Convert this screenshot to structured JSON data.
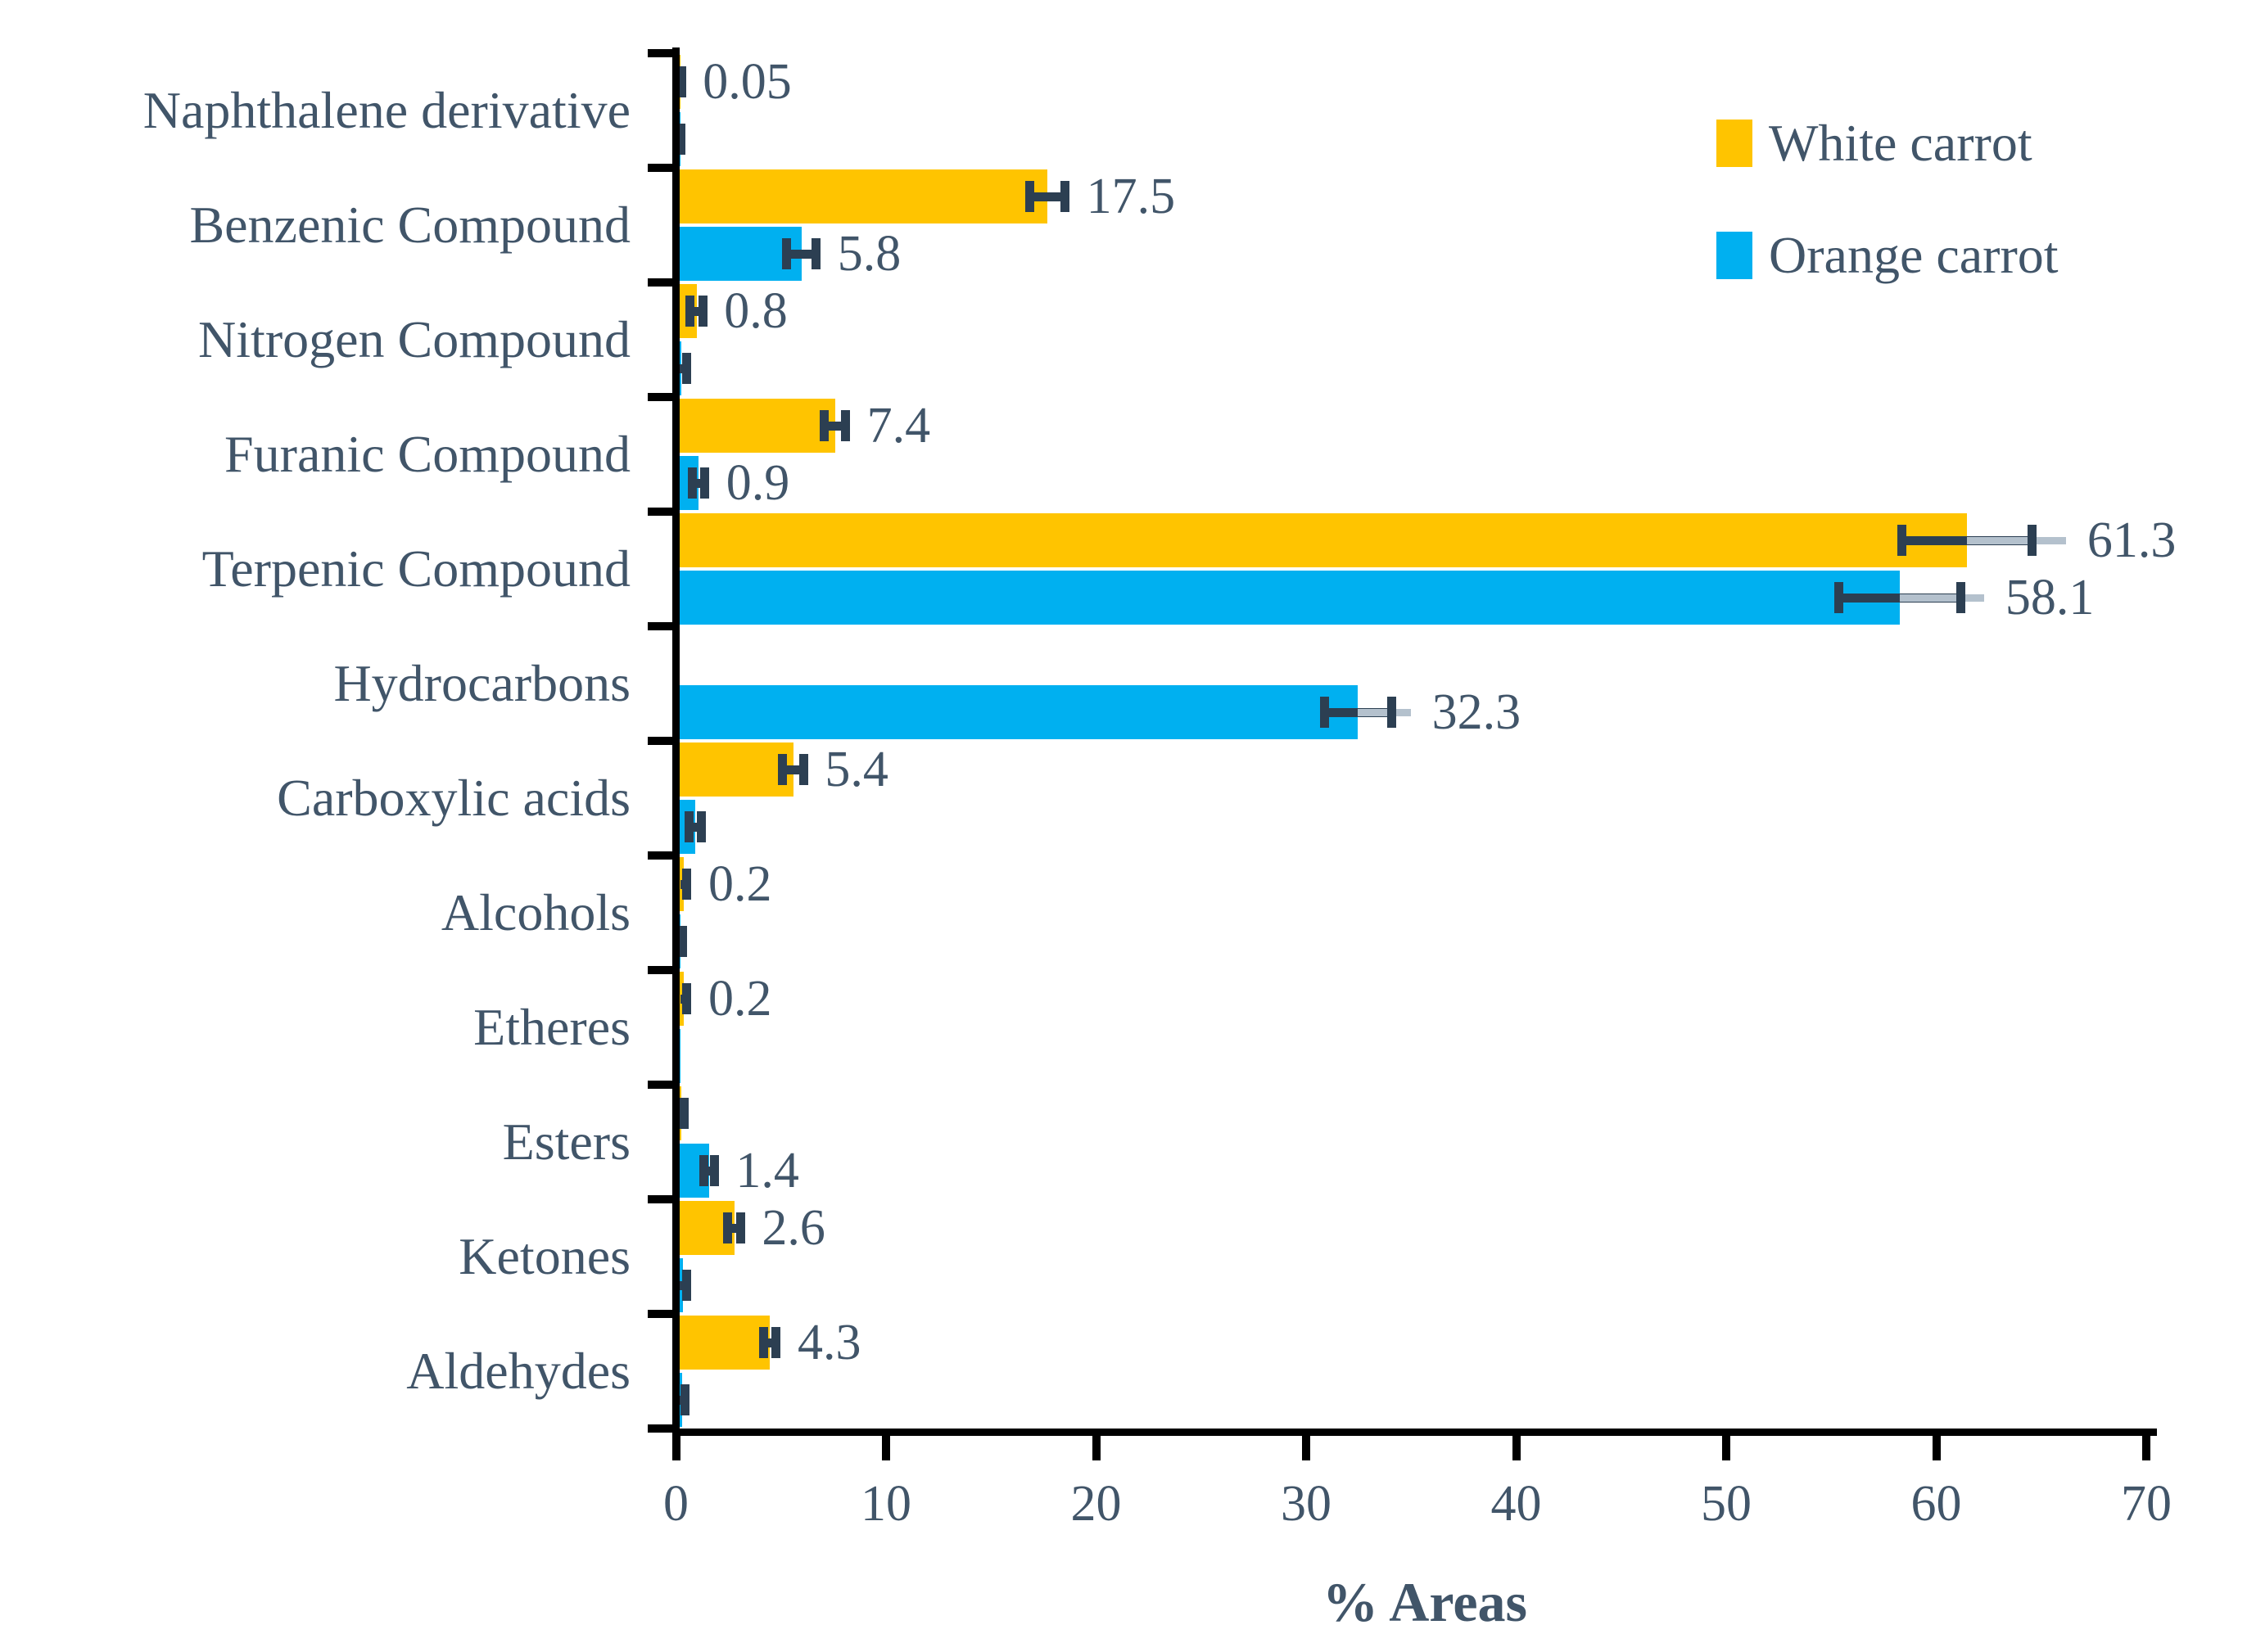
{
  "chart_data": {
    "type": "bar",
    "orientation": "horizontal",
    "xlabel": "% Areas",
    "xlim": [
      0,
      70
    ],
    "xticks": [
      0,
      10,
      20,
      30,
      40,
      50,
      60,
      70
    ],
    "grid": false,
    "legend_position": "top-right",
    "colors": {
      "white_carrot": "#FFC400",
      "orange_carrot": "#00B0F0",
      "error_dark": "#2C3F52",
      "error_gray": "#B4C1CD",
      "text": "#415569",
      "axis": "#000000"
    },
    "series": [
      {
        "name": "White carrot",
        "color": "#FFC400"
      },
      {
        "name": "Orange carrot",
        "color": "#00B0F0"
      }
    ],
    "categories": [
      {
        "name": "Naphthalene derivative",
        "white": {
          "value": 0.05,
          "err": 0.04,
          "err2": null,
          "label": "0.05"
        },
        "orange": {
          "value": 0.02,
          "err": 0.03,
          "err2": null,
          "label": null
        }
      },
      {
        "name": "Benzenic Compound",
        "white": {
          "value": 17.5,
          "err": 0.85,
          "err2": null,
          "label": "17.5"
        },
        "orange": {
          "value": 5.8,
          "err": 0.7,
          "err2": null,
          "label": "5.8"
        }
      },
      {
        "name": "Nitrogen Compound",
        "white": {
          "value": 0.8,
          "err": 0.3,
          "err2": null,
          "label": "0.8"
        },
        "orange": {
          "value": 0.08,
          "err": 0.25,
          "err2": null,
          "label": null
        }
      },
      {
        "name": "Furanic Compound",
        "white": {
          "value": 7.4,
          "err": 0.5,
          "err2": null,
          "label": "7.4"
        },
        "orange": {
          "value": 0.9,
          "err": 0.3,
          "err2": null,
          "label": "0.9"
        }
      },
      {
        "name": "Terpenic Compound",
        "white": {
          "value": 61.3,
          "err": 3.1,
          "err2": 4.7,
          "label": "61.3"
        },
        "orange": {
          "value": 58.1,
          "err": 2.9,
          "err2": 4.0,
          "label": "58.1"
        }
      },
      {
        "name": "Hydrocarbons",
        "white": {
          "value": 0,
          "err": null,
          "err2": null,
          "label": null
        },
        "orange": {
          "value": 32.3,
          "err": 1.6,
          "err2": 2.5,
          "label": "32.3"
        }
      },
      {
        "name": "Carboxylic acids",
        "white": {
          "value": 5.4,
          "err": 0.5,
          "err2": null,
          "label": "5.4"
        },
        "orange": {
          "value": 0.75,
          "err": 0.3,
          "err2": null,
          "label": null
        }
      },
      {
        "name": "Alcohols",
        "white": {
          "value": 0.2,
          "err": 0.15,
          "err2": null,
          "label": "0.2"
        },
        "orange": {
          "value": 0.04,
          "err": 0.1,
          "err2": null,
          "label": null
        }
      },
      {
        "name": "Etheres",
        "white": {
          "value": 0.2,
          "err": 0.15,
          "err2": null,
          "label": "0.2"
        },
        "orange": {
          "value": 0.02,
          "err": null,
          "err2": null,
          "label": null
        }
      },
      {
        "name": "Esters",
        "white": {
          "value": 0.06,
          "err": 0.15,
          "err2": null,
          "label": null
        },
        "orange": {
          "value": 1.4,
          "err": 0.25,
          "err2": null,
          "label": "1.4"
        }
      },
      {
        "name": "Ketones",
        "white": {
          "value": 2.6,
          "err": 0.3,
          "err2": null,
          "label": "2.6"
        },
        "orange": {
          "value": 0.15,
          "err": 0.2,
          "err2": null,
          "label": null
        }
      },
      {
        "name": "Aldehydes",
        "white": {
          "value": 4.3,
          "err": 0.3,
          "err2": null,
          "label": "4.3"
        },
        "orange": {
          "value": 0.12,
          "err": 0.15,
          "err2": null,
          "label": null
        }
      }
    ]
  }
}
